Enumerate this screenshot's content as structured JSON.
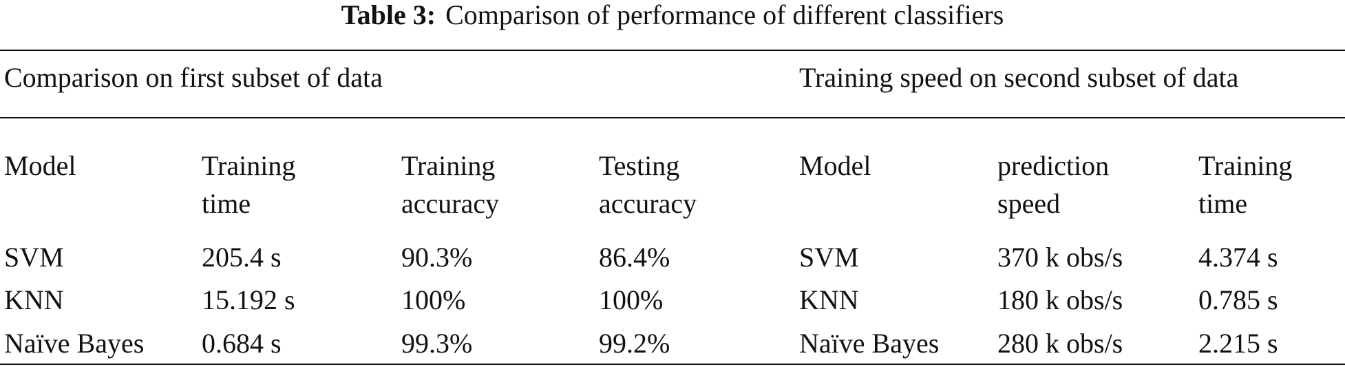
{
  "table": {
    "caption_label": "Table 3:",
    "caption": "Comparison of performance of different classifiers",
    "groups": [
      "Comparison on first subset of data",
      "Training speed on second subset of data"
    ],
    "columns": [
      [
        "Model"
      ],
      [
        "Training",
        "time"
      ],
      [
        "Training",
        "accuracy"
      ],
      [
        "Testing",
        "accuracy"
      ],
      [
        "Model"
      ],
      [
        "prediction",
        "speed"
      ],
      [
        "Training",
        "time"
      ]
    ],
    "rows": [
      [
        "SVM",
        "205.4 s",
        "90.3%",
        "86.4%",
        "SVM",
        "370 k obs/s",
        "4.374 s"
      ],
      [
        "KNN",
        "15.192 s",
        "100%",
        "100%",
        "KNN",
        "180 k obs/s",
        "0.785 s"
      ],
      [
        "Naïve Bayes",
        "0.684 s",
        "99.3%",
        "99.2%",
        "Naïve Bayes",
        "280 k obs/s",
        "2.215 s"
      ]
    ]
  }
}
